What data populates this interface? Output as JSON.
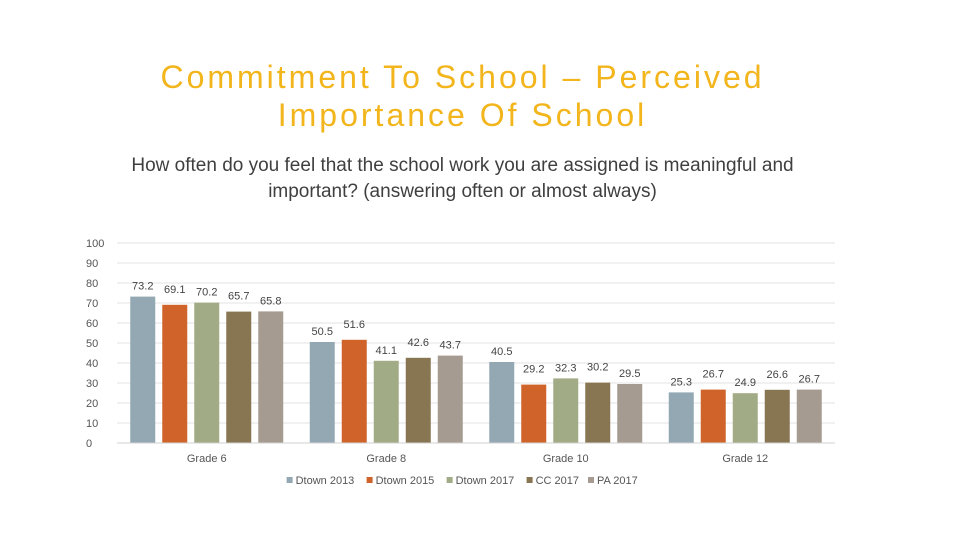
{
  "title_line1": "Commitment To School – Perceived",
  "title_line2": "Importance Of School",
  "chart_data": {
    "type": "bar",
    "title": "How often do you feel that the school work you are assigned is meaningful and important? (answering often or almost always)",
    "categories": [
      "Grade 6",
      "Grade 8",
      "Grade 10",
      "Grade 12"
    ],
    "series": [
      {
        "name": "Dtown 2013",
        "color": "#94a8b4",
        "values": [
          73.2,
          50.5,
          40.5,
          25.3
        ]
      },
      {
        "name": "Dtown 2015",
        "color": "#d0632a",
        "values": [
          69.1,
          51.6,
          29.2,
          26.7
        ]
      },
      {
        "name": "Dtown 2017",
        "color": "#a1ab85",
        "values": [
          70.2,
          41.1,
          32.3,
          24.9
        ]
      },
      {
        "name": "CC 2017",
        "color": "#887552",
        "values": [
          65.7,
          42.6,
          30.2,
          26.6
        ]
      },
      {
        "name": "PA 2017",
        "color": "#a69b90",
        "values": [
          65.8,
          43.7,
          29.5,
          26.7
        ]
      }
    ],
    "ylim": [
      0,
      100
    ],
    "yticks": [
      0,
      10,
      20,
      30,
      40,
      50,
      60,
      70,
      80,
      90,
      100
    ],
    "grid": true,
    "legend": "bottom"
  }
}
